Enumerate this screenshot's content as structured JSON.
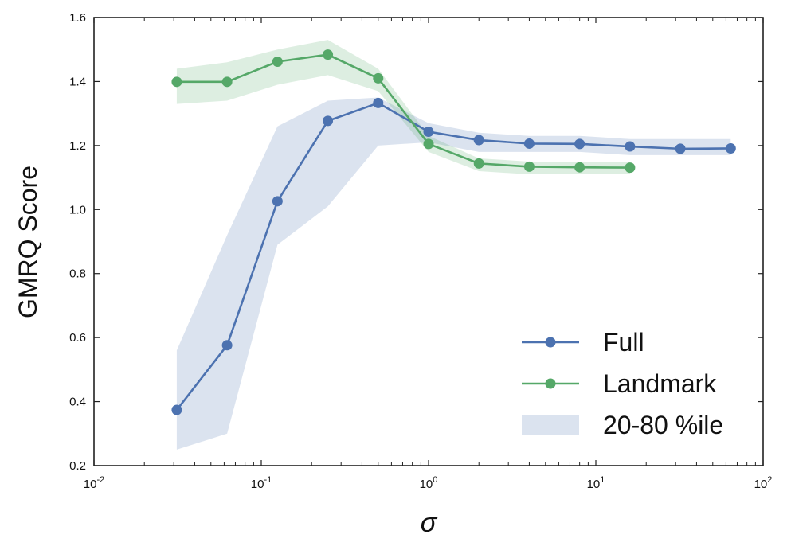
{
  "chart_data": {
    "type": "line",
    "xscale": "log",
    "xlim": [
      0.01,
      100
    ],
    "ylim": [
      0.2,
      1.6
    ],
    "xlabel": "σ",
    "ylabel": "GMRQ Score",
    "grid": false,
    "legend_position": "lower-right",
    "x_ticks": [
      {
        "value": 0.01,
        "base": "10",
        "exp": "-2"
      },
      {
        "value": 0.1,
        "base": "10",
        "exp": "-1"
      },
      {
        "value": 1,
        "base": "10",
        "exp": "0"
      },
      {
        "value": 10,
        "base": "10",
        "exp": "1"
      },
      {
        "value": 100,
        "base": "10",
        "exp": "2"
      }
    ],
    "y_ticks": [
      "0.2",
      "0.4",
      "0.6",
      "0.8",
      "1.0",
      "1.2",
      "1.4",
      "1.6"
    ],
    "series": [
      {
        "name": "Full",
        "color": "#4c72b0",
        "x": [
          0.03125,
          0.0625,
          0.125,
          0.25,
          0.5,
          1,
          2,
          4,
          8,
          16,
          32,
          64
        ],
        "values": [
          0.374,
          0.576,
          1.026,
          1.277,
          1.333,
          1.243,
          1.217,
          1.206,
          1.205,
          1.197,
          1.19,
          1.191
        ],
        "band_low": [
          0.25,
          0.3,
          0.89,
          1.01,
          1.2,
          1.21,
          1.18,
          1.18,
          1.18,
          1.17,
          1.17,
          1.17
        ],
        "band_high": [
          0.56,
          0.92,
          1.26,
          1.34,
          1.35,
          1.27,
          1.24,
          1.23,
          1.23,
          1.22,
          1.22,
          1.22
        ]
      },
      {
        "name": "Landmark",
        "color": "#55a868",
        "x": [
          0.03125,
          0.0625,
          0.125,
          0.25,
          0.5,
          1,
          2,
          4,
          8,
          16
        ],
        "values": [
          1.399,
          1.399,
          1.462,
          1.484,
          1.41,
          1.205,
          1.144,
          1.134,
          1.132,
          1.131
        ],
        "band_low": [
          1.33,
          1.34,
          1.39,
          1.42,
          1.37,
          1.18,
          1.12,
          1.11,
          1.11,
          1.11
        ],
        "band_high": [
          1.44,
          1.46,
          1.5,
          1.53,
          1.44,
          1.23,
          1.16,
          1.15,
          1.15,
          1.15
        ]
      }
    ],
    "legend": [
      {
        "label": "Full",
        "kind": "line",
        "color": "#4c72b0"
      },
      {
        "label": "Landmark",
        "kind": "line",
        "color": "#55a868"
      },
      {
        "label": "20-80 %ile",
        "kind": "band",
        "color": "#4c72b0"
      }
    ]
  }
}
